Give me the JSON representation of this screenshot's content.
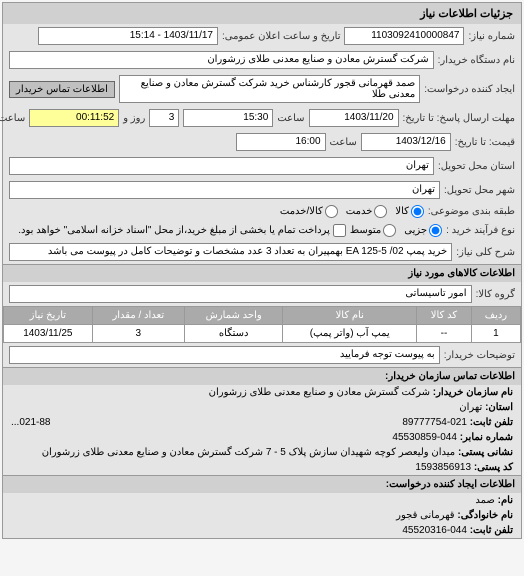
{
  "panel_title": "جزئیات اطلاعات نیاز",
  "req_number_label": "شماره نیاز:",
  "req_number": "1103092410000847",
  "announce_label": "تاریخ و ساعت اعلان عمومی:",
  "announce_value": "1403/11/17 - 15:14",
  "buyer_org_label": "نام دستگاه خریدار:",
  "buyer_org": "شرکت گسترش معادن و صنایع معدنی طلای زرشوران",
  "requester_label": "ایجاد کننده درخواست:",
  "requester": "صمد قهرمانی قجور کارشناس خرید شرکت گسترش معادن و صنایع معدنی طلا",
  "contact_btn": "اطلاعات تماس خریدار",
  "response_deadline_label": "مهلت ارسال پاسخ: تا تاریخ:",
  "response_deadline_date": "1403/11/20",
  "time_label": "ساعت",
  "response_deadline_time": "15:30",
  "days_label": "روز و",
  "days_value": "3",
  "remaining_time": "00:11:52",
  "remaining_label": "ساعت باقی مانده",
  "price_deadline_label": "قیمت: تا تاریخ:",
  "price_deadline_date": "1403/12/16",
  "price_deadline_time": "16:00",
  "delivery_province_label": "استان محل تحویل:",
  "delivery_province": "تهران",
  "delivery_city_label": "شهر محل تحویل:",
  "delivery_city": "تهران",
  "category_label": "طبقه بندی موضوعی:",
  "radio_goods": "کالا",
  "radio_service": "خدمت",
  "radio_both": "کالا/خدمت",
  "process_label": "نوع فرآیند خرید :",
  "radio_partial": "جزیی",
  "radio_medium": "متوسط",
  "process_note": "پرداخت تمام یا بخشی از مبلغ خرید،از محل \"اسناد خزانه اسلامی\" خواهد بود.",
  "subject_label": "شرح کلی نیاز:",
  "subject": "خرید پمپ 02/ EA 125-5 بهمپیران به تعداد 3 عدد مشخصات و توضیحات کامل در پیوست می باشد",
  "goods_header": "اطلاعات کالاهای مورد نیاز",
  "group_label": "گروه کالا:",
  "group_value": "امور تاسیساتی",
  "table": {
    "cols": [
      "ردیف",
      "کد کالا",
      "نام کالا",
      "واحد شمارش",
      "تعداد / مقدار",
      "تاریخ نیاز"
    ],
    "rows": [
      [
        "1",
        "--",
        "یمپ آب (واتر پمپ)",
        "دستگاه",
        "3",
        "1403/11/25"
      ]
    ]
  },
  "attach_note_label": "توضیحات خریدار:",
  "attach_note": "به پیوست توجه فرمایید",
  "contact_header": "اطلاعات تماس سازمان خریدار:",
  "org_name_label": "نام سازمان خریدار:",
  "org_name": "شرکت گسترش معادن و صنایع معدنی طلای زرشوران",
  "province_label": "استان:",
  "province": "تهران",
  "phone_label": "تلفن ثابت:",
  "phone": "021-89777754",
  "fax_label": "شماره نمابر:",
  "fax": "044-45530859",
  "address_label": "نشانی پستی:",
  "address": "میدان ولیعصر کوچه شهیدان سازش پلاک 5 - 7 شرکت گسترش معادن و صنایع معدنی طلای زرشوران",
  "postal_label": "کد پستی:",
  "postal": "1593856913",
  "requester_header": "اطلاعات ایجاد کننده درخواست:",
  "name_label": "نام:",
  "name_value": "صمد",
  "surname_label": "نام خانوادگی:",
  "surname_value": "قهرمانی قجور",
  "req_phone_label": "تلفن ثابت:",
  "req_phone": "044-45520316",
  "phone2": "021-88..."
}
